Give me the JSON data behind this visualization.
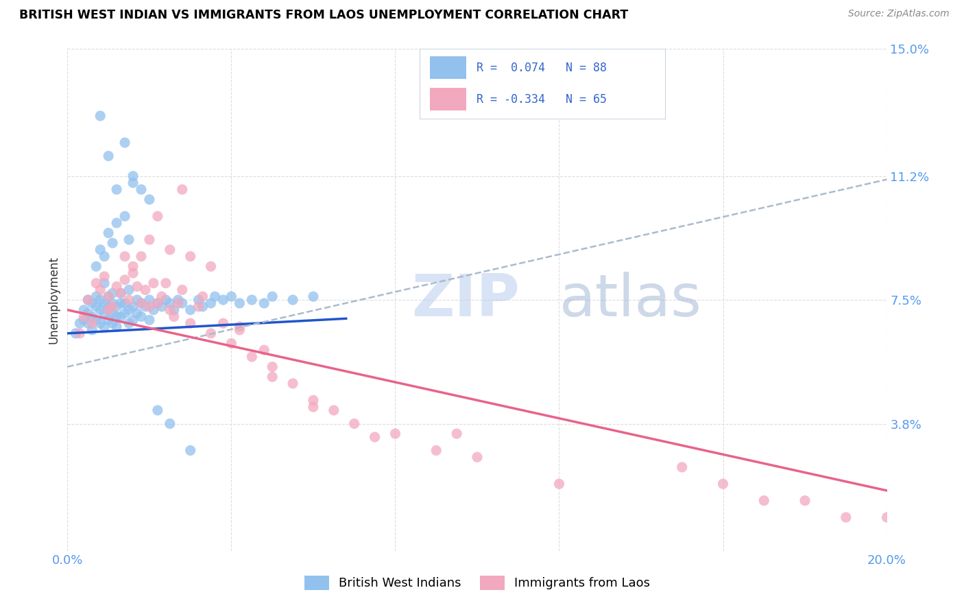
{
  "title": "BRITISH WEST INDIAN VS IMMIGRANTS FROM LAOS UNEMPLOYMENT CORRELATION CHART",
  "source": "Source: ZipAtlas.com",
  "ylabel": "Unemployment",
  "xlim": [
    0.0,
    0.2
  ],
  "ylim": [
    0.0,
    0.15
  ],
  "xtick_values": [
    0.0,
    0.04,
    0.08,
    0.12,
    0.16,
    0.2
  ],
  "xticklabels": [
    "0.0%",
    "",
    "",
    "",
    "",
    "20.0%"
  ],
  "ytick_values": [
    0.0,
    0.038,
    0.075,
    0.112,
    0.15
  ],
  "ytick_labels": [
    "",
    "3.8%",
    "7.5%",
    "11.2%",
    "15.0%"
  ],
  "watermark_zip": "ZIP",
  "watermark_atlas": "atlas",
  "blue_color": "#92C1EE",
  "pink_color": "#F2A8BE",
  "blue_line_color": "#2255CC",
  "pink_line_color": "#E8638A",
  "dashed_line_color": "#AABBCC",
  "legend_text_color": "#3366CC",
  "legend_r1_label": "R =  0.074   N = 88",
  "legend_r2_label": "R = -0.334   N = 65",
  "legend_label1": "British West Indians",
  "legend_label2": "Immigrants from Laos",
  "blue_intercept": 0.065,
  "blue_slope": 0.065,
  "pink_intercept": 0.072,
  "pink_slope": -0.27,
  "dashed_intercept": 0.055,
  "dashed_slope": 0.28,
  "blue_points_x": [
    0.002,
    0.003,
    0.004,
    0.004,
    0.005,
    0.005,
    0.005,
    0.006,
    0.006,
    0.006,
    0.007,
    0.007,
    0.007,
    0.008,
    0.008,
    0.008,
    0.009,
    0.009,
    0.009,
    0.009,
    0.01,
    0.01,
    0.01,
    0.01,
    0.011,
    0.011,
    0.011,
    0.011,
    0.012,
    0.012,
    0.012,
    0.013,
    0.013,
    0.013,
    0.014,
    0.014,
    0.015,
    0.015,
    0.015,
    0.016,
    0.016,
    0.017,
    0.017,
    0.018,
    0.018,
    0.019,
    0.02,
    0.02,
    0.021,
    0.022,
    0.023,
    0.024,
    0.025,
    0.026,
    0.027,
    0.028,
    0.03,
    0.032,
    0.033,
    0.035,
    0.036,
    0.038,
    0.04,
    0.042,
    0.045,
    0.048,
    0.05,
    0.055,
    0.06,
    0.007,
    0.008,
    0.009,
    0.01,
    0.011,
    0.012,
    0.014,
    0.015,
    0.012,
    0.016,
    0.018,
    0.02,
    0.01,
    0.014,
    0.016,
    0.022,
    0.025,
    0.03,
    0.008
  ],
  "blue_points_y": [
    0.065,
    0.068,
    0.072,
    0.069,
    0.075,
    0.071,
    0.068,
    0.074,
    0.07,
    0.066,
    0.073,
    0.069,
    0.076,
    0.072,
    0.068,
    0.075,
    0.071,
    0.074,
    0.067,
    0.08,
    0.073,
    0.069,
    0.076,
    0.072,
    0.068,
    0.074,
    0.071,
    0.077,
    0.07,
    0.073,
    0.067,
    0.074,
    0.07,
    0.077,
    0.071,
    0.074,
    0.068,
    0.072,
    0.078,
    0.073,
    0.069,
    0.075,
    0.071,
    0.074,
    0.07,
    0.073,
    0.069,
    0.075,
    0.072,
    0.074,
    0.073,
    0.075,
    0.074,
    0.072,
    0.075,
    0.074,
    0.072,
    0.075,
    0.073,
    0.074,
    0.076,
    0.075,
    0.076,
    0.074,
    0.075,
    0.074,
    0.076,
    0.075,
    0.076,
    0.085,
    0.09,
    0.088,
    0.095,
    0.092,
    0.098,
    0.1,
    0.093,
    0.108,
    0.11,
    0.108,
    0.105,
    0.118,
    0.122,
    0.112,
    0.042,
    0.038,
    0.03,
    0.13
  ],
  "pink_points_x": [
    0.003,
    0.004,
    0.005,
    0.006,
    0.007,
    0.008,
    0.009,
    0.01,
    0.01,
    0.011,
    0.012,
    0.013,
    0.014,
    0.015,
    0.016,
    0.017,
    0.018,
    0.019,
    0.02,
    0.021,
    0.022,
    0.023,
    0.024,
    0.025,
    0.026,
    0.027,
    0.028,
    0.03,
    0.032,
    0.033,
    0.035,
    0.038,
    0.04,
    0.042,
    0.045,
    0.048,
    0.05,
    0.055,
    0.06,
    0.065,
    0.07,
    0.08,
    0.09,
    0.1,
    0.12,
    0.15,
    0.17,
    0.014,
    0.016,
    0.018,
    0.02,
    0.025,
    0.03,
    0.035,
    0.042,
    0.05,
    0.06,
    0.075,
    0.022,
    0.028,
    0.095,
    0.19,
    0.2,
    0.18,
    0.16
  ],
  "pink_points_y": [
    0.065,
    0.07,
    0.075,
    0.068,
    0.08,
    0.078,
    0.082,
    0.076,
    0.072,
    0.073,
    0.079,
    0.077,
    0.081,
    0.075,
    0.083,
    0.079,
    0.074,
    0.078,
    0.073,
    0.08,
    0.074,
    0.076,
    0.08,
    0.072,
    0.07,
    0.074,
    0.078,
    0.068,
    0.073,
    0.076,
    0.065,
    0.068,
    0.062,
    0.066,
    0.058,
    0.06,
    0.055,
    0.05,
    0.045,
    0.042,
    0.038,
    0.035,
    0.03,
    0.028,
    0.02,
    0.025,
    0.015,
    0.088,
    0.085,
    0.088,
    0.093,
    0.09,
    0.088,
    0.085,
    0.067,
    0.052,
    0.043,
    0.034,
    0.1,
    0.108,
    0.035,
    0.01,
    0.01,
    0.015,
    0.02
  ]
}
